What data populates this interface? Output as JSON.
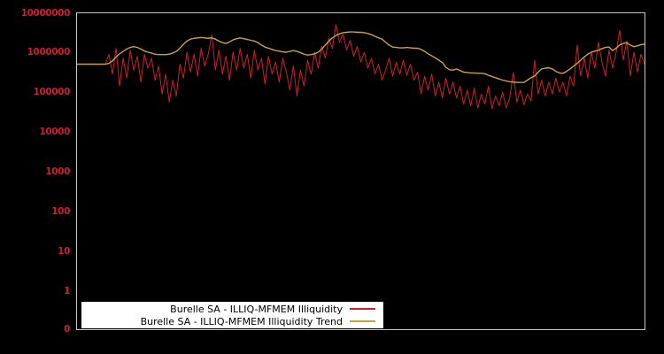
{
  "window": {
    "background_color": "#000000",
    "axis_border_color": "#c8c8c8"
  },
  "chart_data": {
    "type": "line",
    "title": "",
    "xlabel": "",
    "ylabel": "",
    "x_axis": {
      "tick_labels": [],
      "note": "no x tick labels visible"
    },
    "y_axis": {
      "scale": "log10 decades with 0 baseline",
      "tick_labels": [
        "10000000",
        "1000000",
        "100000",
        "10000",
        "1000",
        "100",
        "10",
        "1",
        "0"
      ],
      "tick_label_color": "#cd1f2e",
      "ylim_log10": [
        0,
        7
      ]
    },
    "grid": false,
    "legend_position": "bottom-left",
    "legend_background": "#ffffff",
    "legend_text_color": "#000000",
    "series": [
      {
        "name": "Burelle SA - ILLIQ-MFMEM Illiquidity",
        "color": "#cc1f2e",
        "line_width": 1,
        "log10_values": [
          5.7,
          5.7,
          5.7,
          5.7,
          5.7,
          5.7,
          5.7,
          5.7,
          5.7,
          5.95,
          5.45,
          6.1,
          5.15,
          5.85,
          5.35,
          6.05,
          5.55,
          5.9,
          5.25,
          5.95,
          5.6,
          5.85,
          5.3,
          5.65,
          4.95,
          5.45,
          4.75,
          5.3,
          4.9,
          5.7,
          5.35,
          6.0,
          5.5,
          5.95,
          5.4,
          6.1,
          5.65,
          5.95,
          6.44,
          5.55,
          6.05,
          5.45,
          5.9,
          5.3,
          6.0,
          5.55,
          6.1,
          5.6,
          5.95,
          5.35,
          6.05,
          5.55,
          5.85,
          5.2,
          5.9,
          5.45,
          5.75,
          5.25,
          5.85,
          5.5,
          5.05,
          5.65,
          4.9,
          5.55,
          5.15,
          5.8,
          5.45,
          6.0,
          5.6,
          6.15,
          5.85,
          6.35,
          6.1,
          6.69,
          6.25,
          6.45,
          6.05,
          6.3,
          5.9,
          6.15,
          5.75,
          6.0,
          5.6,
          5.85,
          5.45,
          5.7,
          5.3,
          5.55,
          5.85,
          5.4,
          5.75,
          5.45,
          5.8,
          5.42,
          5.7,
          5.3,
          5.5,
          4.95,
          5.4,
          5.05,
          5.45,
          4.9,
          5.25,
          4.85,
          5.35,
          4.95,
          5.25,
          4.85,
          5.15,
          4.7,
          5.05,
          4.65,
          5.1,
          4.6,
          4.95,
          4.7,
          5.15,
          4.58,
          4.9,
          4.65,
          5.0,
          4.6,
          4.85,
          5.49,
          4.75,
          5.05,
          4.68,
          4.95,
          4.78,
          5.8,
          4.95,
          5.3,
          4.9,
          5.25,
          4.95,
          5.35,
          5.0,
          5.25,
          4.9,
          5.4,
          5.15,
          6.18,
          5.4,
          5.85,
          5.35,
          6.0,
          5.6,
          6.25,
          5.75,
          5.4,
          6.05,
          5.6,
          6.0,
          6.55,
          5.8,
          6.28,
          5.4,
          6.0,
          5.5,
          5.95,
          5.7
        ]
      },
      {
        "name": "Burelle SA - ILLIQ-MFMEM Illiquidity Trend",
        "color": "#c9a43b",
        "line_width": 1.4,
        "log10_values": [
          5.7,
          5.7,
          5.7,
          5.7,
          5.7,
          5.7,
          5.7,
          5.7,
          5.7,
          5.72,
          5.78,
          5.88,
          5.96,
          6.02,
          6.08,
          6.12,
          6.14,
          6.12,
          6.08,
          6.03,
          6.0,
          5.98,
          5.95,
          5.94,
          5.94,
          5.94,
          5.95,
          5.98,
          6.02,
          6.1,
          6.2,
          6.28,
          6.33,
          6.35,
          6.36,
          6.37,
          6.36,
          6.35,
          6.36,
          6.33,
          6.28,
          6.24,
          6.22,
          6.26,
          6.31,
          6.34,
          6.36,
          6.34,
          6.32,
          6.3,
          6.28,
          6.24,
          6.18,
          6.13,
          6.1,
          6.07,
          6.04,
          6.03,
          6.01,
          6.0,
          6.02,
          6.04,
          6.02,
          5.99,
          5.95,
          5.93,
          5.94,
          5.96,
          6.0,
          6.08,
          6.18,
          6.28,
          6.36,
          6.42,
          6.46,
          6.49,
          6.5,
          6.51,
          6.51,
          6.5,
          6.5,
          6.49,
          6.47,
          6.44,
          6.4,
          6.36,
          6.33,
          6.25,
          6.18,
          6.13,
          6.12,
          6.11,
          6.11,
          6.12,
          6.11,
          6.1,
          6.1,
          6.07,
          6.02,
          5.96,
          5.91,
          5.86,
          5.8,
          5.74,
          5.62,
          5.56,
          5.55,
          5.58,
          5.54,
          5.5,
          5.49,
          5.48,
          5.48,
          5.47,
          5.47,
          5.46,
          5.42,
          5.39,
          5.36,
          5.33,
          5.3,
          5.28,
          5.26,
          5.25,
          5.24,
          5.24,
          5.24,
          5.3,
          5.36,
          5.4,
          5.5,
          5.58,
          5.6,
          5.61,
          5.58,
          5.52,
          5.48,
          5.47,
          5.52,
          5.58,
          5.65,
          5.72,
          5.8,
          5.88,
          5.95,
          6.0,
          6.03,
          6.05,
          6.09,
          6.12,
          6.13,
          6.04,
          6.1,
          6.18,
          6.22,
          6.24,
          6.18,
          6.14,
          6.16,
          6.19,
          6.2
        ]
      }
    ]
  }
}
